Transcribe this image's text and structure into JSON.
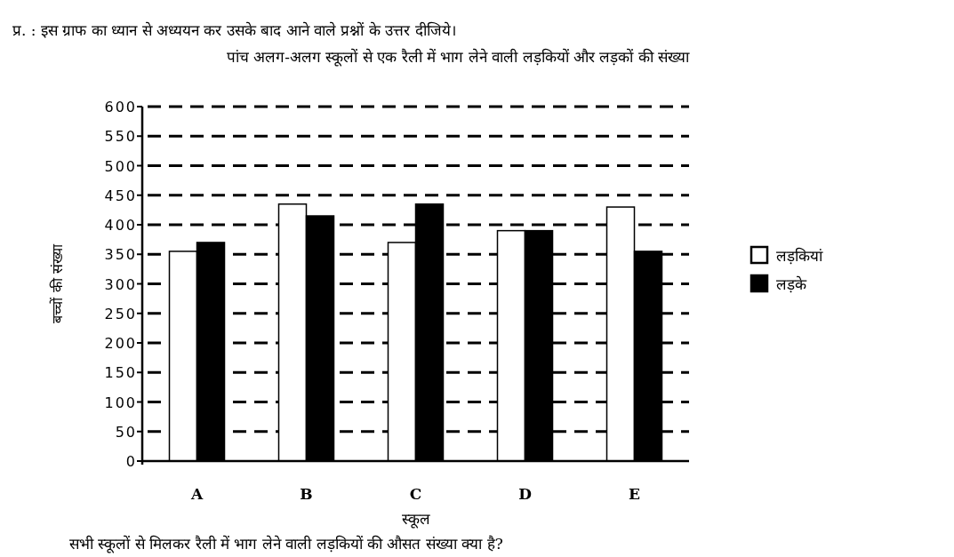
{
  "chart_data": {
    "type": "bar",
    "title": "प्र.  : इस ग्राफ का ध्यान से अध्ययन कर उसके बाद आने वाले प्रश्नों के उत्तर दीजिये।",
    "subtitle": "पांच अलग-अलग स्कूलों से एक रैली में भाग लेने वाली लड़कियों और लड़कों की संख्या",
    "xlabel": "स्कूल",
    "ylabel": "बच्चों की संख्या",
    "annotations": [
      "सभी स्कूलों से मिलकर रैली में भाग लेने वाली लड़कियों की औसत संख्या क्या है?"
    ],
    "categories": [
      "A",
      "B",
      "C",
      "D",
      "E"
    ],
    "series": [
      {
        "name": "लड़कियां",
        "color": "#ffffff",
        "values": [
          355,
          435,
          370,
          390,
          430
        ]
      },
      {
        "name": "लड़के",
        "color": "#000000",
        "values": [
          370,
          415,
          435,
          390,
          355
        ]
      }
    ],
    "ylim": [
      0,
      600
    ],
    "yticks": [
      0,
      50,
      100,
      150,
      200,
      250,
      300,
      350,
      400,
      450,
      500,
      550,
      600
    ],
    "grid": "y",
    "legend": "right"
  }
}
